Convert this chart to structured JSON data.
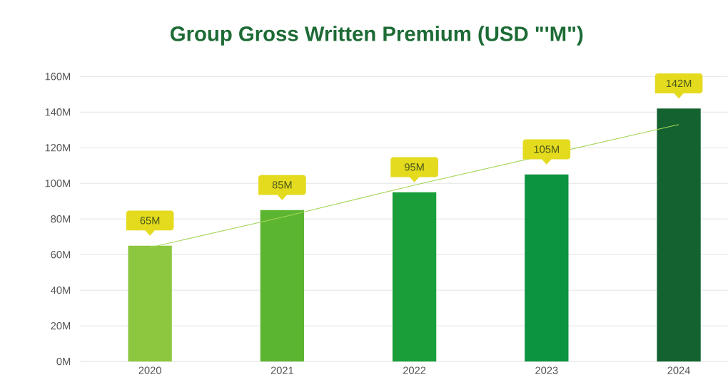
{
  "chart_data": {
    "type": "bar",
    "title": "Group Gross Written Premium (USD \"'M\")",
    "categories": [
      "2020",
      "2021",
      "2022",
      "2023",
      "2024"
    ],
    "series": [
      {
        "type": "bar",
        "values": [
          65,
          85,
          95,
          105,
          142
        ],
        "colors": [
          "#8dc63f",
          "#5cb531",
          "#1a9e3a",
          "#0d9440",
          "#13622f"
        ],
        "value_labels": [
          "65M",
          "85M",
          "95M",
          "105M",
          "142M"
        ]
      },
      {
        "type": "line",
        "values": [
          64,
          81,
          99,
          null,
          133
        ],
        "color": "#a5d65a"
      }
    ],
    "ylim": [
      0,
      160
    ],
    "yticks": [
      {
        "value": 0,
        "label": "0M"
      },
      {
        "value": 20,
        "label": "20M"
      },
      {
        "value": 40,
        "label": "40M"
      },
      {
        "value": 60,
        "label": "60M"
      },
      {
        "value": 80,
        "label": "80M"
      },
      {
        "value": 100,
        "label": "100M"
      },
      {
        "value": 120,
        "label": "120M"
      },
      {
        "value": 140,
        "label": "140M"
      },
      {
        "value": 160,
        "label": "160M"
      }
    ],
    "grid": "y"
  }
}
